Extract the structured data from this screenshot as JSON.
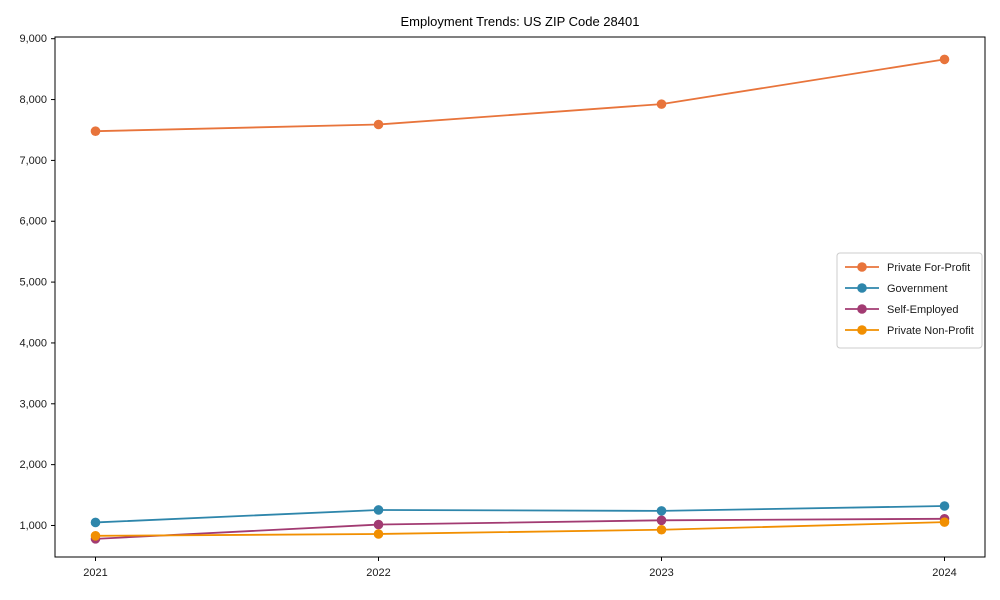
{
  "title": "Employment Trends: US ZIP Code 28401",
  "chart_data": {
    "type": "line",
    "x": [
      2021,
      2022,
      2023,
      2024
    ],
    "series": [
      {
        "name": "Private For-Profit",
        "color": "#e8743b",
        "values": [
          7480,
          7590,
          7925,
          8660
        ]
      },
      {
        "name": "Government",
        "color": "#2e86ab",
        "values": [
          1050,
          1255,
          1240,
          1320
        ]
      },
      {
        "name": "Self-Employed",
        "color": "#a23b72",
        "values": [
          780,
          1015,
          1085,
          1110
        ]
      },
      {
        "name": "Private Non-Profit",
        "color": "#f18f01",
        "values": [
          830,
          860,
          930,
          1055
        ]
      }
    ],
    "xlabel": "",
    "ylabel": "",
    "yticks": [
      1000,
      2000,
      3000,
      4000,
      5000,
      6000,
      7000,
      8000,
      9000
    ],
    "ylim": [
      482,
      9028
    ],
    "grid": false,
    "legend_position": "center-right",
    "axis_color": "#000000",
    "background_color": "#ffffff",
    "legend_border_color": "#cccccc"
  }
}
